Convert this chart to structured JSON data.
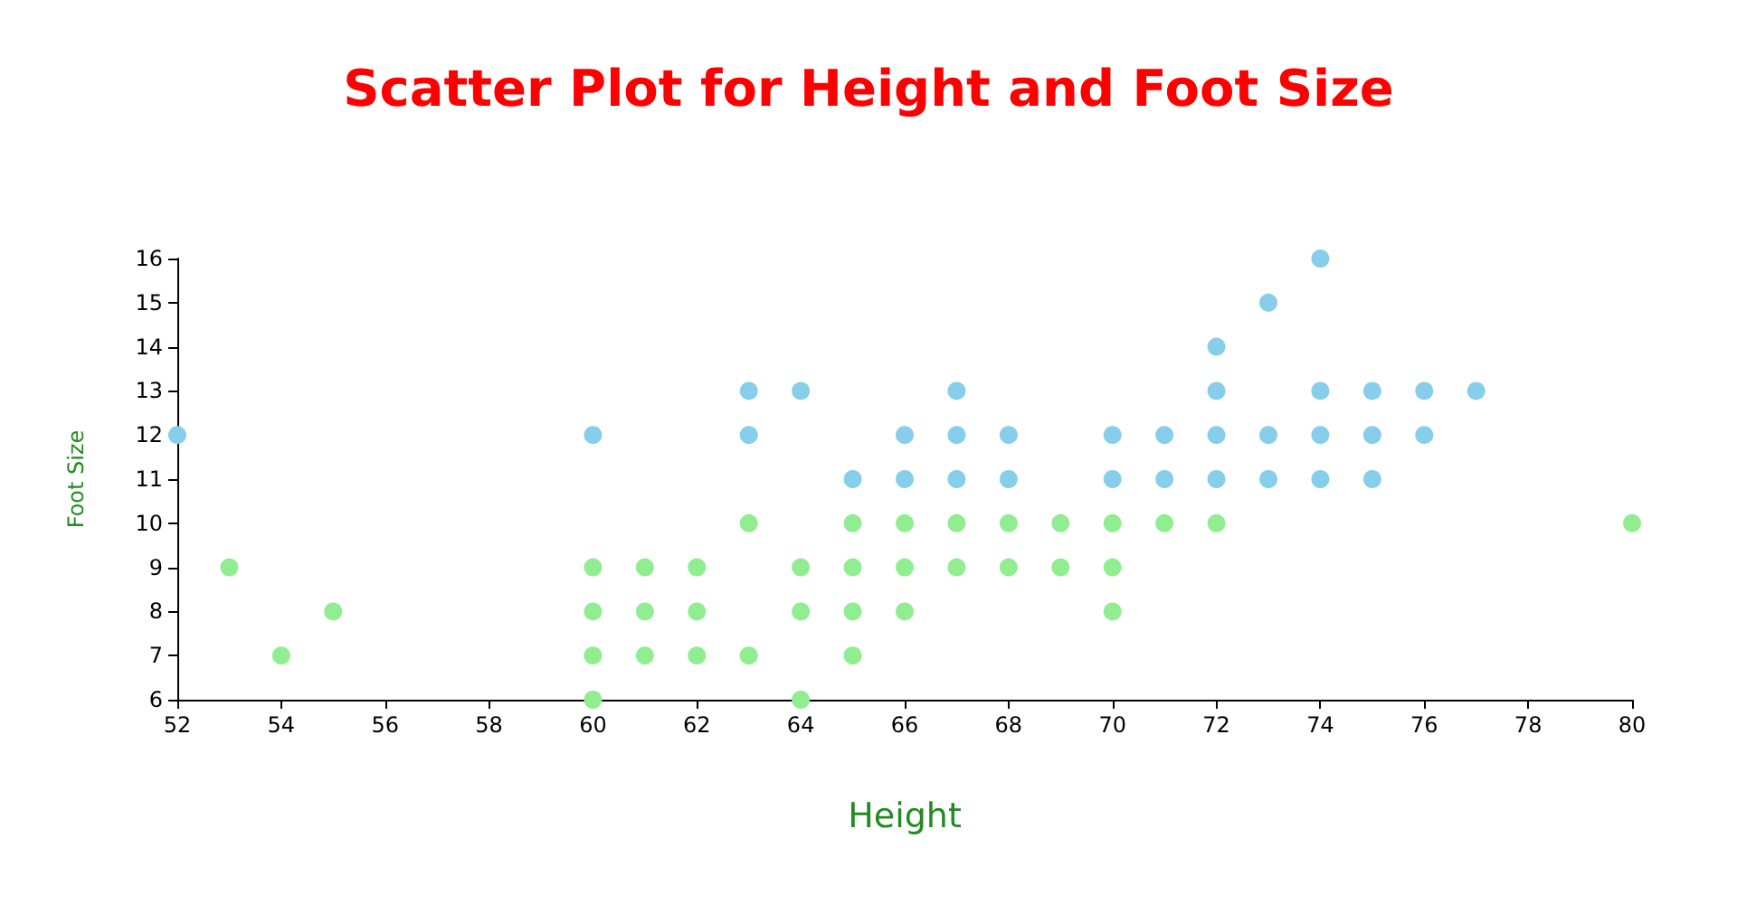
{
  "chart_data": {
    "type": "scatter",
    "title": "Scatter Plot for Height and Foot Size",
    "xlabel": "Height",
    "ylabel": "Foot Size",
    "xlim": [
      52,
      80
    ],
    "xticks": [
      52,
      54,
      56,
      58,
      60,
      62,
      64,
      66,
      68,
      70,
      72,
      74,
      76,
      78,
      80
    ],
    "ylim": [
      6,
      16
    ],
    "yticks": [
      6,
      7,
      8,
      9,
      10,
      11,
      12,
      13,
      14,
      15,
      16
    ],
    "marker": "circle",
    "series": [
      {
        "color": "#87ceeb",
        "x": [
          52,
          60,
          63,
          63,
          64,
          65,
          66,
          66,
          67,
          67,
          67,
          68,
          68,
          70,
          70,
          71,
          71,
          72,
          72,
          72,
          72,
          73,
          73,
          73,
          74,
          74,
          74,
          74,
          75,
          75,
          75,
          76,
          76,
          77
        ],
        "values": [
          12,
          12,
          13,
          12,
          13,
          11,
          12,
          11,
          13,
          12,
          11,
          12,
          11,
          12,
          11,
          12,
          11,
          14,
          13,
          12,
          11,
          15,
          12,
          11,
          16,
          13,
          12,
          11,
          13,
          12,
          11,
          13,
          12,
          13
        ]
      },
      {
        "color": "#90ee90",
        "x": [
          53,
          54,
          55,
          60,
          60,
          60,
          60,
          61,
          61,
          61,
          62,
          62,
          62,
          63,
          63,
          64,
          64,
          64,
          65,
          65,
          65,
          65,
          66,
          66,
          66,
          67,
          67,
          68,
          68,
          69,
          69,
          70,
          70,
          70,
          71,
          72,
          80
        ],
        "values": [
          9,
          7,
          8,
          9,
          8,
          7,
          6,
          9,
          8,
          7,
          9,
          8,
          7,
          10,
          7,
          9,
          8,
          6,
          10,
          9,
          8,
          7,
          10,
          9,
          8,
          10,
          9,
          10,
          9,
          10,
          9,
          10,
          9,
          8,
          10,
          10,
          10
        ]
      }
    ]
  }
}
